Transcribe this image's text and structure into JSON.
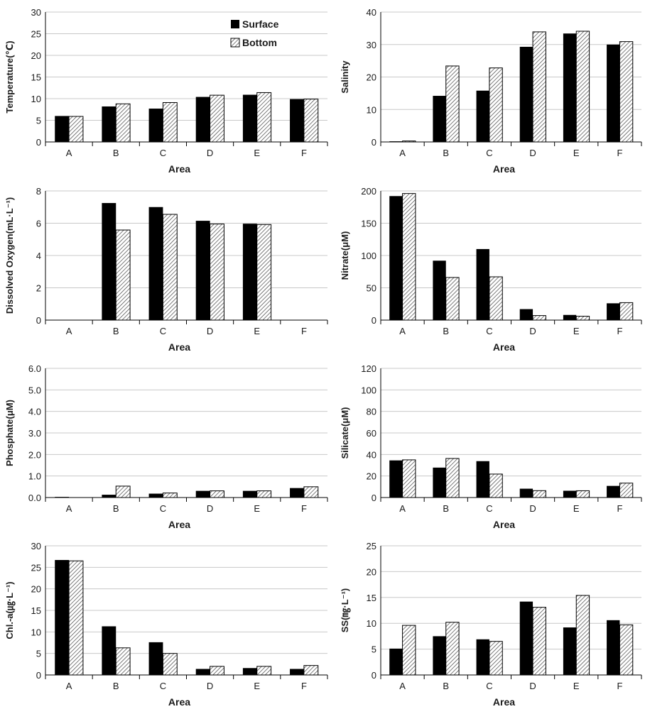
{
  "legend": {
    "surface": "Surface",
    "bottom": "Bottom"
  },
  "chart_data": [
    {
      "type": "bar",
      "categories": [
        "A",
        "B",
        "C",
        "D",
        "E",
        "F"
      ],
      "xlabel": "Area",
      "ylabel": "Temperature(℃)",
      "ylim": [
        0,
        30
      ],
      "yticks": [
        0,
        5,
        10,
        15,
        20,
        25,
        30
      ],
      "grid": true,
      "legend_position": "top-right",
      "series": [
        {
          "name": "Surface",
          "values": [
            6.0,
            8.2,
            7.7,
            10.4,
            10.9,
            9.9
          ]
        },
        {
          "name": "Bottom",
          "values": [
            5.9,
            8.8,
            9.1,
            10.8,
            11.4,
            9.9
          ]
        }
      ]
    },
    {
      "type": "bar",
      "categories": [
        "A",
        "B",
        "C",
        "D",
        "E",
        "F"
      ],
      "xlabel": "Area",
      "ylabel": "Salinity",
      "ylim": [
        0,
        40
      ],
      "yticks": [
        0,
        10,
        20,
        30,
        40
      ],
      "grid": true,
      "series": [
        {
          "name": "Surface",
          "values": [
            0.2,
            14.2,
            15.8,
            29.3,
            33.4,
            30.0
          ]
        },
        {
          "name": "Bottom",
          "values": [
            0.3,
            23.4,
            22.8,
            33.9,
            34.1,
            30.9
          ]
        }
      ]
    },
    {
      "type": "bar",
      "categories": [
        "A",
        "B",
        "C",
        "D",
        "E",
        "F"
      ],
      "xlabel": "Area",
      "ylabel": "Dissolved Oxygen(mL·L⁻¹)",
      "ylim": [
        0,
        8
      ],
      "yticks": [
        0,
        2,
        4,
        6,
        8
      ],
      "grid": true,
      "series": [
        {
          "name": "Surface",
          "values": [
            null,
            7.25,
            7.0,
            6.15,
            5.97,
            null
          ]
        },
        {
          "name": "Bottom",
          "values": [
            null,
            5.58,
            6.55,
            5.95,
            5.92,
            null
          ]
        }
      ]
    },
    {
      "type": "bar",
      "categories": [
        "A",
        "B",
        "C",
        "D",
        "E",
        "F"
      ],
      "xlabel": "Area",
      "ylabel": "Nitrate(μM)",
      "ylim": [
        0,
        200
      ],
      "yticks": [
        0,
        50,
        100,
        150,
        200
      ],
      "grid": true,
      "series": [
        {
          "name": "Surface",
          "values": [
            192,
            92,
            110,
            17,
            8,
            26
          ]
        },
        {
          "name": "Bottom",
          "values": [
            196,
            66,
            67,
            7,
            6,
            27
          ]
        }
      ]
    },
    {
      "type": "bar",
      "categories": [
        "A",
        "B",
        "C",
        "D",
        "E",
        "F"
      ],
      "xlabel": "Area",
      "ylabel": "Phosphate(μM)",
      "ylim": [
        0,
        6
      ],
      "yticks": [
        "0.0",
        "1.0",
        "2.0",
        "3.0",
        "4.0",
        "5.0",
        "6.0"
      ],
      "grid": true,
      "series": [
        {
          "name": "Surface",
          "values": [
            0.03,
            0.13,
            0.18,
            0.31,
            0.31,
            0.44
          ]
        },
        {
          "name": "Bottom",
          "values": [
            0.0,
            0.53,
            0.21,
            0.31,
            0.31,
            0.5
          ]
        }
      ]
    },
    {
      "type": "bar",
      "categories": [
        "A",
        "B",
        "C",
        "D",
        "E",
        "F"
      ],
      "xlabel": "Area",
      "ylabel": "Silicate(μM)",
      "ylim": [
        0,
        120
      ],
      "yticks": [
        0,
        20,
        40,
        60,
        80,
        100,
        120
      ],
      "grid": true,
      "series": [
        {
          "name": "Surface",
          "values": [
            34.5,
            27.8,
            33.8,
            8.2,
            6.3,
            10.8
          ]
        },
        {
          "name": "Bottom",
          "values": [
            35.0,
            36.3,
            21.8,
            6.4,
            6.3,
            13.4
          ]
        }
      ]
    },
    {
      "type": "bar",
      "categories": [
        "A",
        "B",
        "C",
        "D",
        "E",
        "F"
      ],
      "xlabel": "Area",
      "ylabel": "Chl.-a(㎍·L⁻¹)",
      "ylim": [
        0,
        30
      ],
      "yticks": [
        0,
        5,
        10,
        15,
        20,
        25,
        30
      ],
      "grid": true,
      "series": [
        {
          "name": "Surface",
          "values": [
            26.7,
            11.3,
            7.6,
            1.4,
            1.6,
            1.4
          ]
        },
        {
          "name": "Bottom",
          "values": [
            26.5,
            6.3,
            5.0,
            2.0,
            2.0,
            2.2
          ]
        }
      ]
    },
    {
      "type": "bar",
      "categories": [
        "A",
        "B",
        "C",
        "D",
        "E",
        "F"
      ],
      "xlabel": "Area",
      "ylabel": "SS(㎎·L⁻¹)",
      "ylim": [
        0,
        25
      ],
      "yticks": [
        0,
        5,
        10,
        15,
        20,
        25
      ],
      "grid": true,
      "series": [
        {
          "name": "Surface",
          "values": [
            5.1,
            7.5,
            6.9,
            14.2,
            9.2,
            10.6
          ]
        },
        {
          "name": "Bottom",
          "values": [
            9.6,
            10.2,
            6.5,
            13.1,
            15.4,
            9.7
          ]
        }
      ]
    }
  ]
}
